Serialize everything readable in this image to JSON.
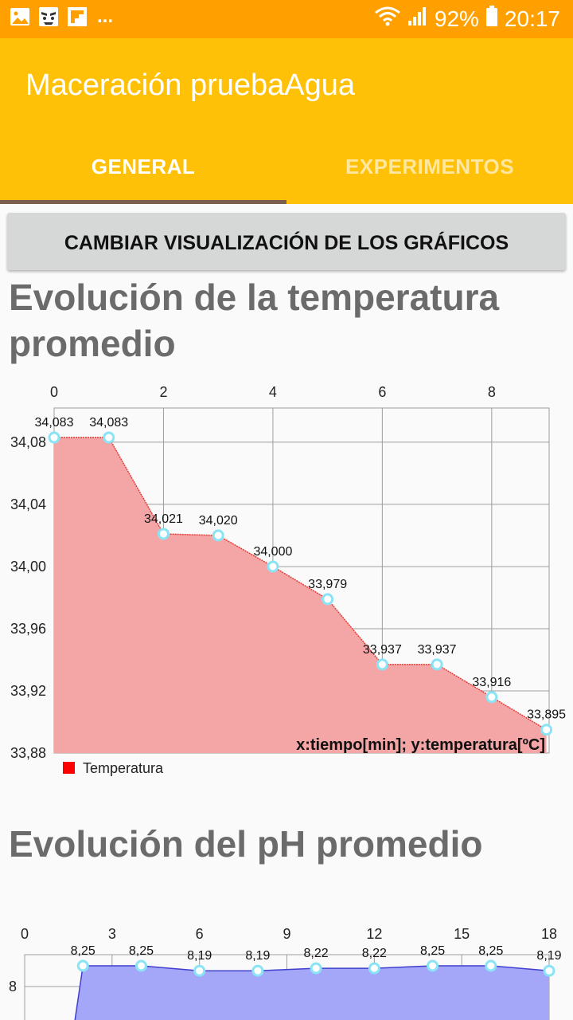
{
  "status_bar": {
    "notification_icons": [
      "image-icon",
      "face-app-icon",
      "flipboard-icon"
    ],
    "more_indicator": "...",
    "battery": "92%",
    "time": "20:17"
  },
  "app_bar": {
    "title": "Maceración pruebaAgua",
    "tabs": [
      {
        "label": "GENERAL",
        "active": true
      },
      {
        "label": "EXPERIMENTOS",
        "active": false
      }
    ]
  },
  "actions": {
    "change_view_label": "CAMBIAR VISUALIZACIÓN DE LOS GRÁFICOS"
  },
  "sections": {
    "temperature_title_line1": "Evolución de la temperatura",
    "temperature_title_line2": "promedio",
    "ph_title": "Evolución del pH promedio"
  },
  "colors": {
    "status_bar": "#FFA000",
    "app_bar": "#FFC107",
    "tab_indicator": "#7A5D4A",
    "temp_fill": "#F4A5A5",
    "temp_line": "#E53935",
    "ph_fill": "#A4A6F7",
    "ph_line": "#3F3FD0",
    "point_marker": "#8BE4F5"
  },
  "chart_data": [
    {
      "type": "area",
      "x_tick_labels": [
        "0",
        "2",
        "4",
        "6",
        "8"
      ],
      "y_tick_labels": [
        "34,08",
        "34,04",
        "34,00",
        "33,96",
        "33,92",
        "33,88"
      ],
      "x": [
        0,
        1,
        2,
        3,
        4,
        5,
        6,
        7,
        8,
        9
      ],
      "series": [
        {
          "name": "Temperatura",
          "values": [
            34.083,
            34.083,
            34.021,
            34.02,
            34.0,
            33.979,
            33.937,
            33.937,
            33.916,
            33.895
          ],
          "point_labels": [
            "34,083",
            "34,083",
            "34,021",
            "34,020",
            "34,000",
            "33,979",
            "33,937",
            "33,937",
            "33,916",
            "33,895"
          ]
        }
      ],
      "axis_note": "x:tiempo[min]; y:temperatura[ºC]",
      "xlim": [
        0,
        9.05
      ],
      "ylim": [
        33.88,
        34.102
      ],
      "x_ticks": [
        0,
        2,
        4,
        6,
        8
      ],
      "y_ticks": [
        34.08,
        34.04,
        34.0,
        33.96,
        33.92,
        33.88
      ],
      "x_axis_position": "top",
      "legend_placement": "bottom-left",
      "grid": true
    },
    {
      "type": "area",
      "x_tick_labels": [
        "0",
        "3",
        "6",
        "9",
        "12",
        "15",
        "18"
      ],
      "y_tick_labels": [
        "8"
      ],
      "x": [
        2,
        4,
        6,
        8,
        10,
        12,
        14,
        16,
        18
      ],
      "series": [
        {
          "values": [
            8.25,
            8.25,
            8.19,
            8.19,
            8.22,
            8.22,
            8.25,
            8.25,
            8.19
          ],
          "point_labels": [
            "8,25",
            "8,25",
            "8,19",
            "8,19",
            "8,22",
            "8,22",
            "8,25",
            "8,25",
            "8,19"
          ]
        }
      ],
      "xlim": [
        0,
        18
      ],
      "x_ticks": [
        0,
        3,
        6,
        9,
        12,
        15,
        18
      ],
      "y_ticks": [
        8
      ],
      "x_axis_position": "top",
      "grid": true
    }
  ]
}
